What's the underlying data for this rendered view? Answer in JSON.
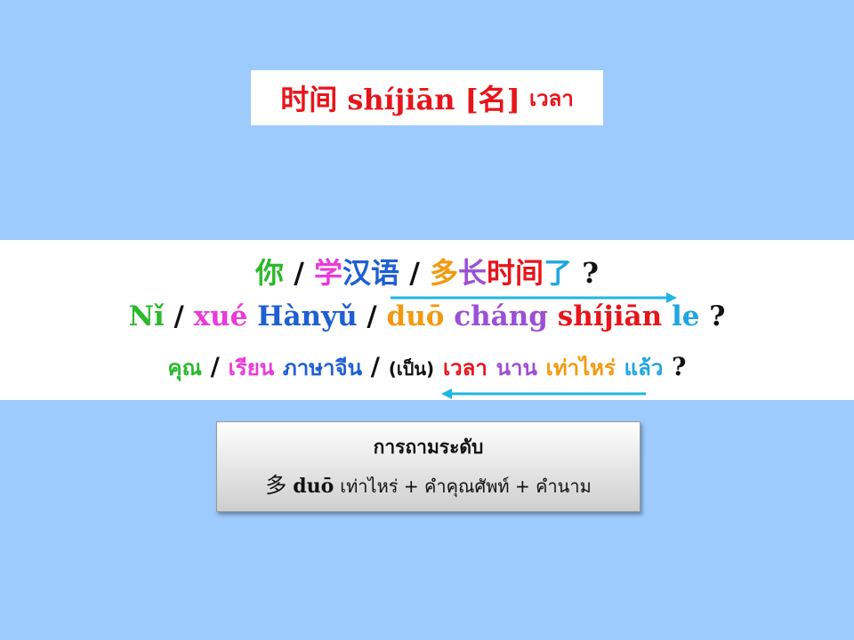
{
  "title": {
    "chinese": "时间 shíjiān [名]",
    "thai": "เวลา"
  },
  "sentence": {
    "hanzi": [
      {
        "text": "你",
        "color": "#2DB82D"
      },
      {
        "text": " / ",
        "color": "#111111"
      },
      {
        "text": "学",
        "color": "#EA3BD8"
      },
      {
        "text": "汉语",
        "color": "#1F5FD1"
      },
      {
        "text": " / ",
        "color": "#111111"
      },
      {
        "text": "多",
        "color": "#F29A0F"
      },
      {
        "text": "长",
        "color": "#9B4FD6"
      },
      {
        "text": "时间",
        "color": "#E8141B"
      },
      {
        "text": "了",
        "color": "#1FA6E0"
      },
      {
        "text": " ?",
        "color": "#111111"
      }
    ],
    "pinyin": [
      {
        "text": "Nǐ",
        "color": "#2DB82D"
      },
      {
        "text": " / ",
        "color": "#111111"
      },
      {
        "text": "xué",
        "color": "#EA3BD8"
      },
      {
        "text": " Hànyǔ",
        "color": "#1F5FD1"
      },
      {
        "text": " / ",
        "color": "#111111"
      },
      {
        "text": "duō",
        "color": "#F29A0F"
      },
      {
        "text": " cháng",
        "color": "#9B4FD6"
      },
      {
        "text": " shíjiān",
        "color": "#E8141B"
      },
      {
        "text": " le",
        "color": "#1FA6E0"
      },
      {
        "text": " ?",
        "color": "#111111"
      }
    ],
    "thai": [
      {
        "text": "คุณ",
        "color": "#2DB82D"
      },
      {
        "text": "เรียน",
        "color": "#EA3BD8"
      },
      {
        "text": "ภาษาจีน",
        "color": "#1F5FD1"
      },
      {
        "text": "(เป็น)",
        "color": "#111111"
      },
      {
        "text": "เวลา",
        "color": "#E8141B"
      },
      {
        "text": "นาน",
        "color": "#9B4FD6"
      },
      {
        "text": "เท่าไหร่",
        "color": "#F29A0F"
      },
      {
        "text": "แล้ว",
        "color": "#1FA6E0"
      },
      {
        "text": "?",
        "color": "#111111"
      }
    ],
    "separator": "/"
  },
  "info": {
    "title": "การถามระดับ",
    "hanzi": "多",
    "pinyin": "duō",
    "formula": "เท่าไหร่ + คำคุณศัพท์ + คำนาม"
  },
  "arrow_color": "#1FB5E5"
}
